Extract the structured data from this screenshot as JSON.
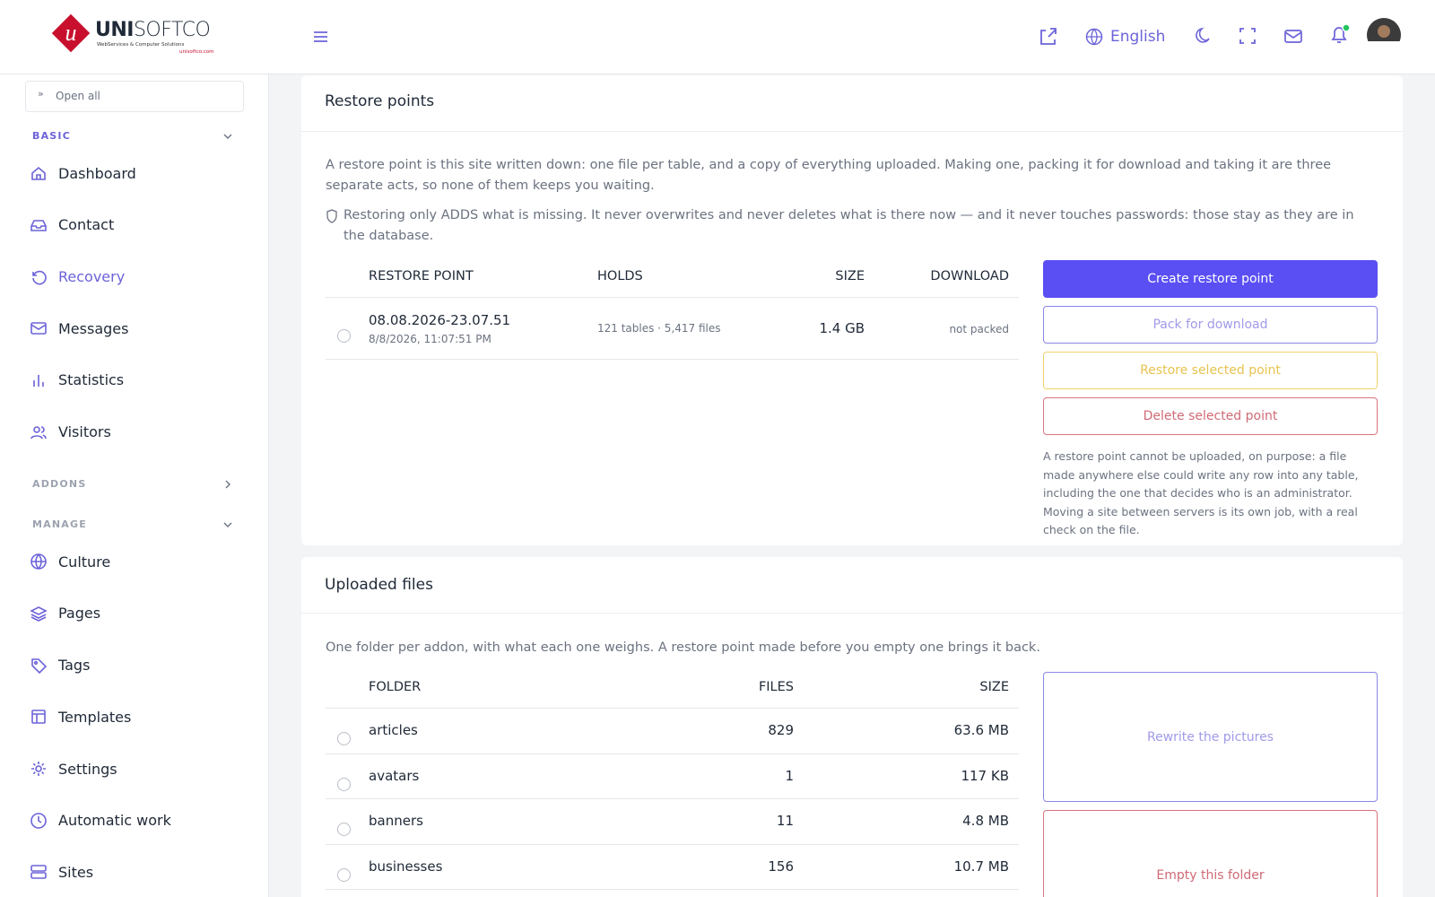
{
  "logo": {
    "brand_bold": "UNI",
    "brand_light": "SOFTCO",
    "tagline": "WebServices & Computer Solutions",
    "url": "unisoftco.com"
  },
  "sidebar": {
    "open_all": "Open all",
    "sections": [
      {
        "title": "BASIC",
        "items": [
          "Dashboard",
          "Contact",
          "Recovery",
          "Messages",
          "Statistics",
          "Visitors"
        ]
      },
      {
        "title": "ADDONS",
        "items": []
      },
      {
        "title": "MANAGE",
        "items": [
          "Culture",
          "Pages",
          "Tags",
          "Templates",
          "Settings",
          "Automatic work",
          "Sites"
        ]
      }
    ]
  },
  "header": {
    "language": "English"
  },
  "restore_points": {
    "title": "Restore points",
    "intro": "A restore point is this site written down: one file per table, and a copy of everything uploaded. Making one, packing it for download and taking it are three separate acts, so none of them keeps you waiting.",
    "note": "Restoring only ADDS what is missing. It never overwrites and never deletes what is there now — and it never touches passwords: those stay as they are in the database.",
    "table": {
      "headers": [
        "RESTORE POINT",
        "HOLDS",
        "SIZE",
        "DOWNLOAD"
      ],
      "rows": [
        {
          "name": "08.08.2026-23.07.51",
          "date": "8/8/2026, 11:07:51 PM",
          "holds": "121 tables · 5,417 files",
          "size": "1.4 GB",
          "download": "not packed"
        }
      ]
    },
    "buttons": [
      "Create restore point",
      "Pack for download",
      "Restore selected point",
      "Delete selected point"
    ],
    "notice": "A restore point cannot be uploaded, on purpose: a file made anywhere else could write any row into any table, including the one that decides who is an administrator. Moving a site between servers is its own job, with a real check on the file."
  },
  "uploaded_files": {
    "title": "Uploaded files",
    "intro": "One folder per addon, with what each one weighs. A restore point made before you empty one brings it back.",
    "table": {
      "headers": [
        "FOLDER",
        "FILES",
        "SIZE"
      ],
      "rows": [
        [
          "articles",
          "829",
          "63.6 MB"
        ],
        [
          "avatars",
          "1",
          "117 KB"
        ],
        [
          "banners",
          "11",
          "4.8 MB"
        ],
        [
          "businesses",
          "156",
          "10.7 MB"
        ]
      ]
    },
    "buttons": [
      "Rewrite the pictures",
      "Empty this folder"
    ]
  }
}
